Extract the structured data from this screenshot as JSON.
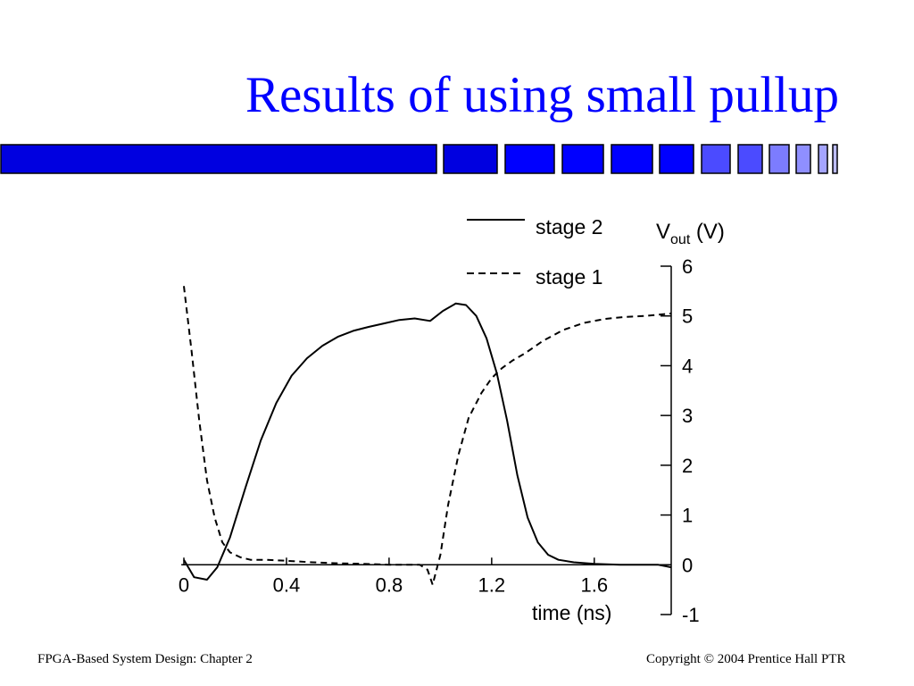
{
  "slide": {
    "title": "Results of using small pullup",
    "footer_left": "FPGA-Based System Design: Chapter 2",
    "footer_right": "Copyright © 2004 Prentice Hall PTR",
    "title_color": "#0000ff",
    "bar_color": "#0000ff"
  },
  "chart_data": {
    "type": "line",
    "title": "",
    "xlabel": "time (ns)",
    "ylabel_main": "V",
    "ylabel_sub": "out",
    "ylabel_unit": " (V)",
    "xlim": [
      0,
      1.9
    ],
    "ylim": [
      -1,
      6
    ],
    "xticks": [
      0,
      0.4,
      0.8,
      1.2,
      1.6
    ],
    "xtick_labels": [
      "0",
      "0.4",
      "0.8",
      "1.2",
      "1.6"
    ],
    "yticks": [
      -1,
      0,
      1,
      2,
      3,
      4,
      5,
      6
    ],
    "ytick_labels": [
      "-1",
      "0",
      "1",
      "2",
      "3",
      "4",
      "5",
      "6"
    ],
    "legend_position": "top",
    "series": [
      {
        "name": "stage 2",
        "style": "solid",
        "x": [
          0,
          0.04,
          0.09,
          0.13,
          0.18,
          0.24,
          0.3,
          0.36,
          0.42,
          0.48,
          0.54,
          0.6,
          0.66,
          0.72,
          0.78,
          0.84,
          0.9,
          0.96,
          1.01,
          1.06,
          1.1,
          1.14,
          1.18,
          1.22,
          1.26,
          1.3,
          1.34,
          1.38,
          1.42,
          1.46,
          1.52,
          1.6,
          1.7,
          1.8,
          1.85,
          1.9
        ],
        "y": [
          0.1,
          -0.25,
          -0.3,
          -0.05,
          0.55,
          1.55,
          2.5,
          3.25,
          3.8,
          4.15,
          4.4,
          4.58,
          4.7,
          4.78,
          4.85,
          4.92,
          4.95,
          4.9,
          5.1,
          5.25,
          5.22,
          5.0,
          4.55,
          3.85,
          2.9,
          1.8,
          0.95,
          0.45,
          0.2,
          0.1,
          0.05,
          0.02,
          0.0,
          0.0,
          0.0,
          -0.05
        ]
      },
      {
        "name": "stage 1",
        "style": "dashed",
        "x": [
          0,
          0.03,
          0.06,
          0.09,
          0.12,
          0.15,
          0.18,
          0.22,
          0.26,
          0.32,
          0.4,
          0.5,
          0.6,
          0.7,
          0.8,
          0.88,
          0.92,
          0.95,
          0.97,
          1.0,
          1.03,
          1.07,
          1.11,
          1.16,
          1.2,
          1.24,
          1.28,
          1.33,
          1.4,
          1.48,
          1.56,
          1.64,
          1.72,
          1.8,
          1.9
        ],
        "y": [
          5.6,
          4.3,
          2.9,
          1.7,
          0.95,
          0.45,
          0.25,
          0.15,
          0.1,
          0.1,
          0.08,
          0.05,
          0.03,
          0.02,
          0.0,
          0.0,
          0.0,
          -0.1,
          -0.4,
          0.2,
          1.2,
          2.2,
          2.95,
          3.45,
          3.75,
          3.95,
          4.1,
          4.25,
          4.5,
          4.72,
          4.86,
          4.94,
          4.98,
          5.0,
          5.05
        ]
      }
    ]
  }
}
